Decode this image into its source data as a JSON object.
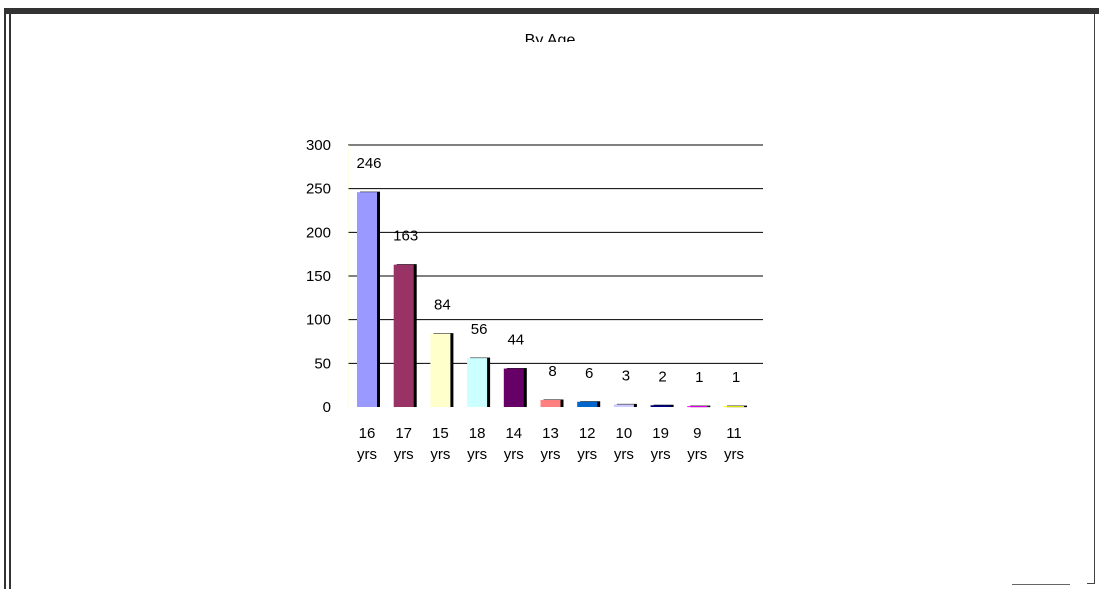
{
  "chart_data": {
    "type": "bar",
    "title": "By Age",
    "xlabel": "",
    "ylabel": "",
    "ylim": [
      0,
      300
    ],
    "yticks": [
      0,
      50,
      100,
      150,
      200,
      250,
      300
    ],
    "grid": true,
    "legend": "none",
    "categories": [
      [
        "16",
        "yrs"
      ],
      [
        "17",
        "yrs"
      ],
      [
        "15",
        "yrs"
      ],
      [
        "18",
        "yrs"
      ],
      [
        "14",
        "yrs"
      ],
      [
        "13",
        "yrs"
      ],
      [
        "12",
        "yrs"
      ],
      [
        "10",
        "yrs"
      ],
      [
        "19",
        "yrs"
      ],
      [
        "9",
        "yrs"
      ],
      [
        "11",
        "yrs"
      ]
    ],
    "values": [
      246,
      163,
      84,
      56,
      44,
      8,
      6,
      3,
      2,
      1,
      1
    ],
    "colors": [
      "#9999ff",
      "#993366",
      "#ffffcc",
      "#ccffff",
      "#660066",
      "#ff8080",
      "#0066cc",
      "#ccccff",
      "#000080",
      "#ff00ff",
      "#ffff00"
    ]
  }
}
